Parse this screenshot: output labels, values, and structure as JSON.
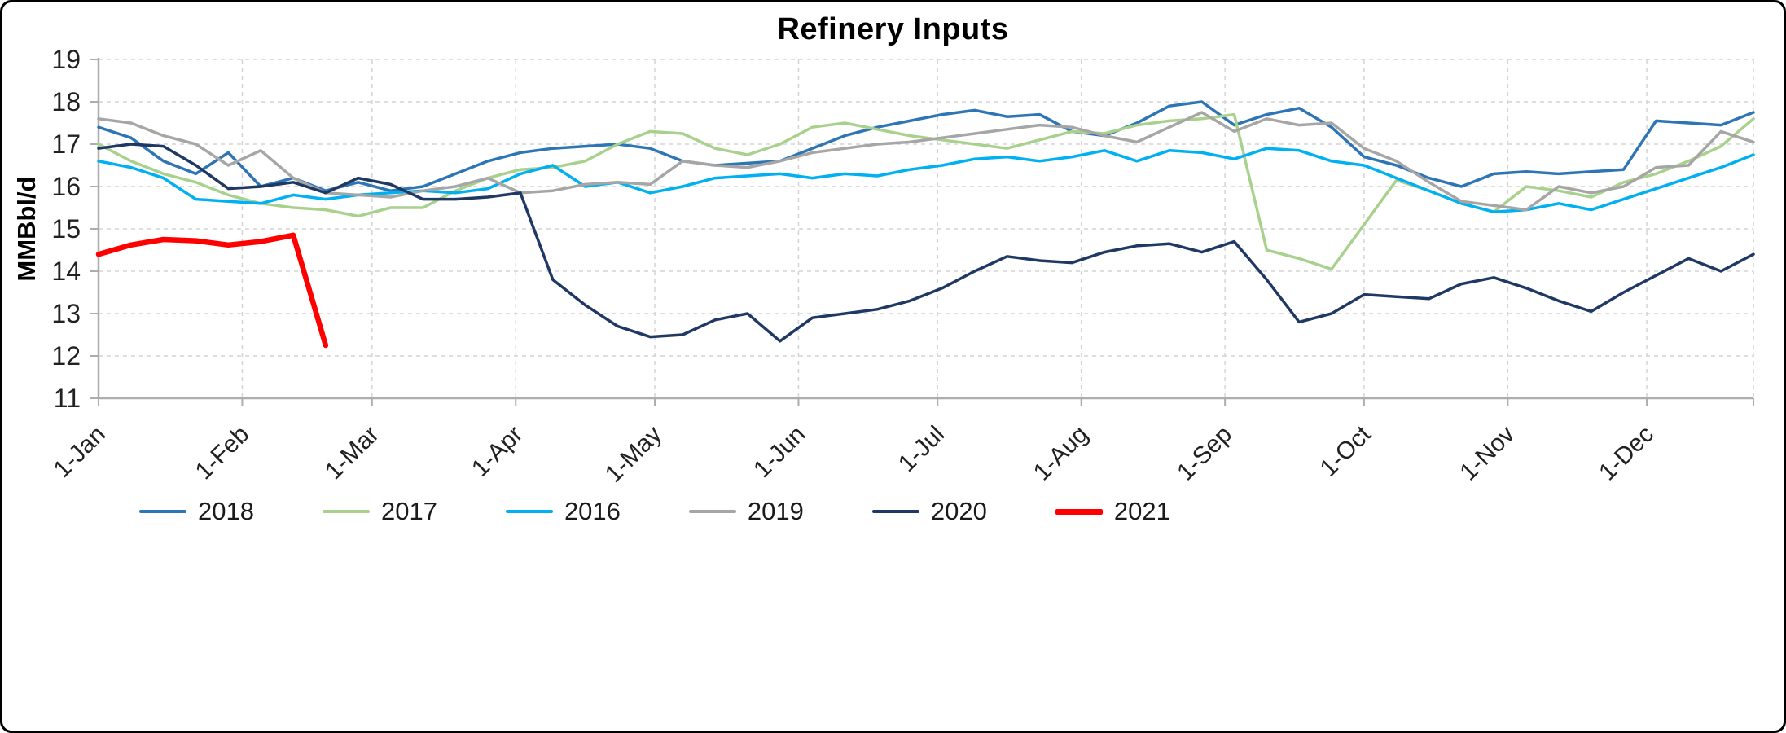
{
  "title": "Refinery Inputs",
  "chart_data": {
    "type": "line",
    "title": "Refinery Inputs",
    "xlabel": "",
    "ylabel": "MMBbl/d",
    "ylim": [
      11,
      19
    ],
    "y_ticks": [
      11,
      12,
      13,
      14,
      15,
      16,
      17,
      18,
      19
    ],
    "grid": true,
    "x_unit": "weekly points across one calendar year",
    "point_interval_days": 7,
    "x_total_days": 357,
    "x_ticks": [
      {
        "label": "1-Jan",
        "day": 0
      },
      {
        "label": "1-Feb",
        "day": 31
      },
      {
        "label": "1-Mar",
        "day": 59
      },
      {
        "label": "1-Apr",
        "day": 90
      },
      {
        "label": "1-May",
        "day": 120
      },
      {
        "label": "1-Jun",
        "day": 151
      },
      {
        "label": "1-Jul",
        "day": 181
      },
      {
        "label": "1-Aug",
        "day": 212
      },
      {
        "label": "1-Sep",
        "day": 243
      },
      {
        "label": "1-Oct",
        "day": 273
      },
      {
        "label": "1-Nov",
        "day": 304
      },
      {
        "label": "1-Dec",
        "day": 334
      }
    ],
    "legend": {
      "position": "bottom",
      "entries": [
        "2018",
        "2017",
        "2016",
        "2019",
        "2020",
        "2021"
      ]
    },
    "axis_color": "#ADADAD",
    "grid_color": "#D4D4D4",
    "series": [
      {
        "name": "2018",
        "color": "#2E75B6",
        "line_width": 3.5,
        "values": [
          17.4,
          17.15,
          16.6,
          16.3,
          16.8,
          16.0,
          16.2,
          15.9,
          16.1,
          15.9,
          16.0,
          16.3,
          16.6,
          16.8,
          16.9,
          16.95,
          17.0,
          16.9,
          16.6,
          16.5,
          16.55,
          16.6,
          16.9,
          17.2,
          17.4,
          17.55,
          17.7,
          17.8,
          17.65,
          17.7,
          17.3,
          17.2,
          17.5,
          17.9,
          18.0,
          17.45,
          17.7,
          17.85,
          17.4,
          16.7,
          16.5,
          16.2,
          16.0,
          16.3,
          16.35,
          16.3,
          16.35,
          16.4,
          17.55,
          17.5,
          17.45,
          17.75
        ]
      },
      {
        "name": "2017",
        "color": "#A9D18E",
        "line_width": 3.5,
        "values": [
          17.0,
          16.6,
          16.3,
          16.1,
          15.8,
          15.6,
          15.5,
          15.45,
          15.3,
          15.5,
          15.5,
          15.9,
          16.2,
          16.4,
          16.45,
          16.6,
          17.0,
          17.3,
          17.25,
          16.9,
          16.75,
          17.0,
          17.4,
          17.5,
          17.35,
          17.2,
          17.1,
          17.0,
          16.9,
          17.1,
          17.3,
          17.25,
          17.45,
          17.55,
          17.6,
          17.7,
          14.5,
          14.3,
          14.05,
          15.1,
          16.15,
          15.9,
          15.6,
          15.4,
          16.0,
          15.9,
          15.75,
          16.1,
          16.3,
          16.6,
          16.95,
          17.6
        ]
      },
      {
        "name": "2016",
        "color": "#00B0F0",
        "line_width": 3.5,
        "values": [
          16.6,
          16.45,
          16.2,
          15.7,
          15.65,
          15.6,
          15.8,
          15.7,
          15.8,
          15.85,
          15.9,
          15.85,
          15.95,
          16.3,
          16.5,
          16.0,
          16.1,
          15.85,
          16.0,
          16.2,
          16.25,
          16.3,
          16.2,
          16.3,
          16.25,
          16.4,
          16.5,
          16.65,
          16.7,
          16.6,
          16.7,
          16.85,
          16.6,
          16.85,
          16.8,
          16.65,
          16.9,
          16.85,
          16.6,
          16.5,
          16.2,
          15.9,
          15.6,
          15.4,
          15.45,
          15.6,
          15.45,
          15.7,
          15.95,
          16.2,
          16.45,
          16.75
        ]
      },
      {
        "name": "2019",
        "color": "#A6A6A6",
        "line_width": 3.5,
        "values": [
          17.6,
          17.5,
          17.2,
          17.0,
          16.5,
          16.85,
          16.2,
          15.85,
          15.8,
          15.75,
          15.9,
          16.0,
          16.2,
          15.85,
          15.9,
          16.05,
          16.1,
          16.05,
          16.6,
          16.5,
          16.45,
          16.6,
          16.8,
          16.9,
          17.0,
          17.05,
          17.15,
          17.25,
          17.35,
          17.45,
          17.4,
          17.2,
          17.05,
          17.4,
          17.75,
          17.3,
          17.6,
          17.45,
          17.5,
          16.9,
          16.6,
          16.1,
          15.65,
          15.55,
          15.45,
          16.0,
          15.85,
          16.0,
          16.45,
          16.5,
          17.3,
          17.05
        ]
      },
      {
        "name": "2020",
        "color": "#1F3864",
        "line_width": 3.5,
        "values": [
          16.9,
          17.0,
          16.95,
          16.5,
          15.95,
          16.0,
          16.1,
          15.85,
          16.2,
          16.05,
          15.7,
          15.7,
          15.75,
          15.85,
          13.8,
          13.2,
          12.7,
          12.45,
          12.5,
          12.85,
          13.0,
          12.35,
          12.9,
          13.0,
          13.1,
          13.3,
          13.6,
          14.0,
          14.35,
          14.25,
          14.2,
          14.45,
          14.6,
          14.65,
          14.45,
          14.7,
          13.8,
          12.8,
          13.0,
          13.45,
          13.4,
          13.35,
          13.7,
          13.85,
          13.6,
          13.3,
          13.05,
          13.5,
          13.9,
          14.3,
          14.0,
          14.4
        ]
      },
      {
        "name": "2021",
        "color": "#FF0000",
        "line_width": 6.5,
        "values": [
          14.4,
          14.62,
          14.75,
          14.72,
          14.62,
          14.7,
          14.85,
          12.25
        ]
      }
    ]
  }
}
